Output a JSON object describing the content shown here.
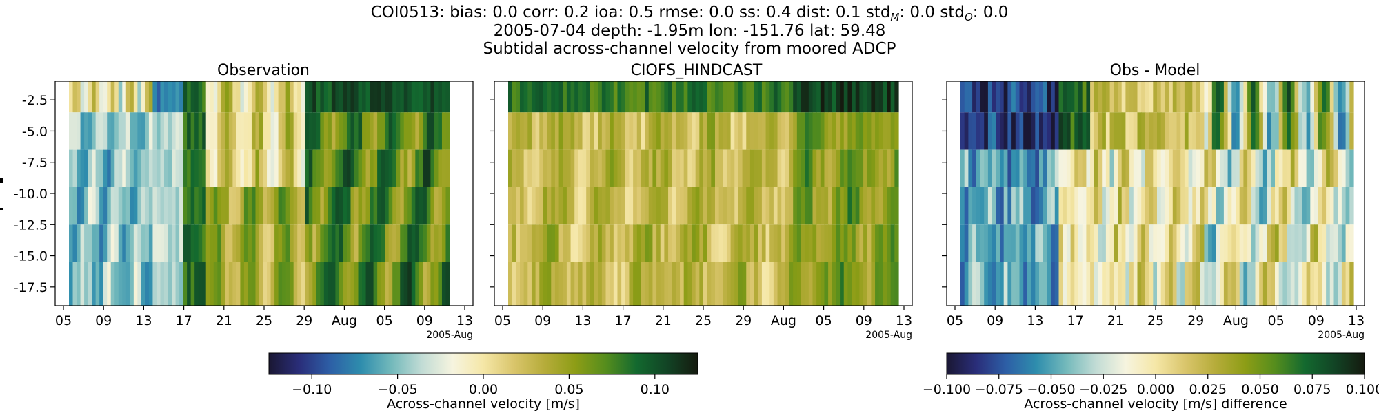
{
  "figure": {
    "title_line1": "COI0513: bias: 0.0  corr: 0.2  ioa: 0.5  rmse: 0.0  ss: 0.4  dist: 0.1  std",
    "title_m_sub": "M",
    "title_mid": ": 0.0  std",
    "title_o_sub": "O",
    "title_end": ": 0.0",
    "title_line2": "2005-07-04 depth: -1.95m lon: -151.76 lat: 59.48",
    "title_line3": "Subtidal across-channel velocity from moored ADCP"
  },
  "colors": {
    "cmap": [
      "#1a1733",
      "#2a2e7a",
      "#2d5fa6",
      "#2e8dad",
      "#73b9bb",
      "#c2dcd5",
      "#f6f4df",
      "#f5e7a7",
      "#d9c56b",
      "#b6ac3a",
      "#8d9d16",
      "#558d1d",
      "#13692f",
      "#124425",
      "#151a0f"
    ]
  },
  "chart_data": [
    {
      "type": "heatmap",
      "title": "Observation",
      "xlabel": "",
      "ylabel": "",
      "x_tick_labels": [
        "05",
        "09",
        "13",
        "17",
        "21",
        "25",
        "29",
        "Aug",
        "05",
        "09",
        "13"
      ],
      "x_offset_label": "2005-Aug",
      "y_tick_labels": [
        "-2.5",
        "-5.0",
        "-7.5",
        "-10.0",
        "-12.5",
        "-15.0",
        "-17.5"
      ],
      "y_range": [
        -19.0,
        -1.0
      ],
      "depth_bins": [
        -1.95,
        -4.95,
        -7.95,
        -10.95,
        -13.95,
        -16.95
      ],
      "time_range": [
        "2005-07-04",
        "2005-08-13"
      ],
      "value_range": [
        -0.125,
        0.125
      ],
      "colorbar": {
        "label": "Across-channel velocity [m/s]",
        "ticks": [
          "-0.10",
          "-0.05",
          "0.00",
          "0.05",
          "0.10"
        ]
      }
    },
    {
      "type": "heatmap",
      "title": "CIOFS_HINDCAST",
      "xlabel": "",
      "x_tick_labels": [
        "05",
        "09",
        "13",
        "17",
        "21",
        "25",
        "29",
        "Aug",
        "05",
        "09",
        "13"
      ],
      "x_offset_label": "2005-Aug",
      "depth_bins": [
        -1.95,
        -4.95,
        -7.95,
        -10.95,
        -13.95,
        -16.95
      ],
      "value_range": [
        -0.125,
        0.125
      ]
    },
    {
      "type": "heatmap",
      "title": "Obs - Model",
      "xlabel": "",
      "x_tick_labels": [
        "05",
        "09",
        "13",
        "17",
        "21",
        "25",
        "29",
        "Aug",
        "05",
        "09",
        "13"
      ],
      "x_offset_label": "2005-Aug",
      "depth_bins": [
        -1.95,
        -4.95,
        -7.95,
        -10.95,
        -13.95,
        -16.95
      ],
      "value_range": [
        -0.1,
        0.1
      ],
      "colorbar": {
        "label": "Across-channel velocity [m/s] difference",
        "ticks": [
          "-0.100",
          "-0.075",
          "-0.050",
          "-0.025",
          "0.000",
          "0.025",
          "0.050",
          "0.075",
          "0.100"
        ]
      }
    }
  ]
}
